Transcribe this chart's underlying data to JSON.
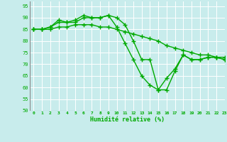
{
  "line1": {
    "x": [
      0,
      1,
      2,
      3,
      4,
      5,
      6,
      7,
      8,
      9,
      10,
      11,
      12,
      13,
      14,
      15,
      16,
      17,
      18,
      19,
      20,
      21,
      22,
      23
    ],
    "y": [
      85,
      85,
      86,
      89,
      88,
      88,
      90,
      90,
      90,
      91,
      90,
      87,
      80,
      72,
      72,
      59,
      59,
      67,
      74,
      72,
      72,
      73,
      73,
      72
    ]
  },
  "line2": {
    "x": [
      0,
      1,
      2,
      3,
      4,
      5,
      6,
      7,
      8,
      9,
      10,
      11,
      12,
      13,
      14,
      15,
      16,
      17,
      18,
      19,
      20,
      21,
      22,
      23
    ],
    "y": [
      85,
      85,
      85,
      86,
      86,
      87,
      87,
      87,
      86,
      86,
      85,
      84,
      83,
      82,
      81,
      80,
      78,
      77,
      76,
      75,
      74,
      74,
      73,
      73
    ]
  },
  "line3": {
    "x": [
      0,
      1,
      2,
      3,
      4,
      5,
      6,
      7,
      8,
      9,
      10,
      11,
      12,
      13,
      14,
      15,
      16,
      17,
      18,
      19,
      20,
      21,
      22,
      23
    ],
    "y": [
      85,
      85,
      86,
      88,
      88,
      89,
      91,
      90,
      90,
      91,
      86,
      79,
      72,
      65,
      61,
      59,
      64,
      68,
      74,
      72,
      72,
      73,
      73,
      72
    ]
  },
  "line_color": "#00aa00",
  "marker": "+",
  "markersize": 4,
  "linewidth": 1.0,
  "xlabel": "Humidité relative (%)",
  "ylim": [
    50,
    97
  ],
  "xlim": [
    -0.5,
    23
  ],
  "yticks": [
    50,
    55,
    60,
    65,
    70,
    75,
    80,
    85,
    90,
    95
  ],
  "xticks": [
    0,
    1,
    2,
    3,
    4,
    5,
    6,
    7,
    8,
    9,
    10,
    11,
    12,
    13,
    14,
    15,
    16,
    17,
    18,
    19,
    20,
    21,
    22,
    23
  ],
  "bg_color": "#c8ecec",
  "grid_color": "#ffffff",
  "tick_color": "#00aa00",
  "label_color": "#00aa00"
}
